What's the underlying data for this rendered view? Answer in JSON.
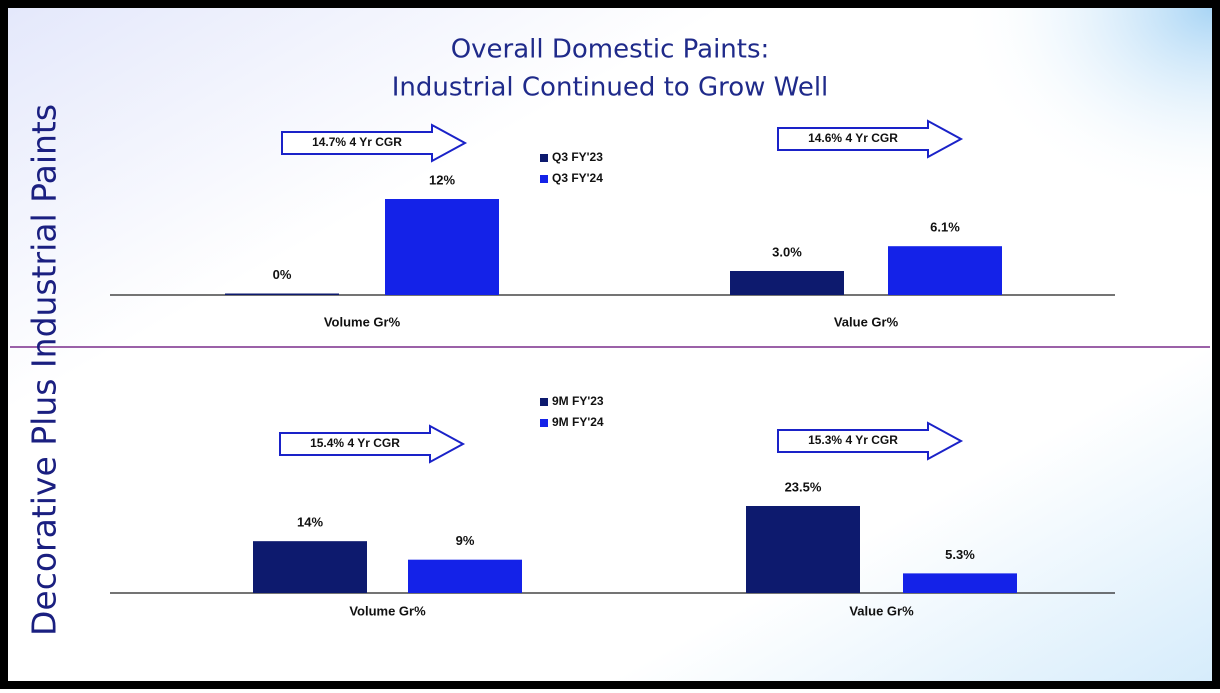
{
  "title": "Overall Domestic Paints:",
  "subtitle": "Industrial Continued to Grow Well",
  "side_label": "Decorative Plus Industrial Paints",
  "chart_data": [
    {
      "type": "bar",
      "categories": [
        "Volume Gr%",
        "Value Gr%"
      ],
      "series": [
        {
          "name": "Q3 FY'23",
          "color": "#0d1a6e",
          "values": [
            0,
            3.0
          ],
          "value_labels": [
            "0%",
            "3.0%"
          ]
        },
        {
          "name": "Q3 FY'24",
          "color": "#1422e8",
          "values": [
            12,
            6.1
          ],
          "value_labels": [
            "12%",
            "6.1%"
          ]
        }
      ],
      "annotations": [
        "14.7% 4 Yr CGR",
        "14.6% 4 Yr CGR"
      ]
    },
    {
      "type": "bar",
      "categories": [
        "Volume Gr%",
        "Value Gr%"
      ],
      "series": [
        {
          "name": "9M FY'23",
          "color": "#0d1a6e",
          "values": [
            14,
            23.5
          ],
          "value_labels": [
            "14%",
            "23.5%"
          ]
        },
        {
          "name": "9M FY'24",
          "color": "#1422e8",
          "values": [
            9,
            5.3
          ],
          "value_labels": [
            "9%",
            "5.3%"
          ]
        }
      ],
      "annotations": [
        "15.4% 4 Yr CGR",
        "15.3% 4 Yr CGR"
      ]
    }
  ]
}
